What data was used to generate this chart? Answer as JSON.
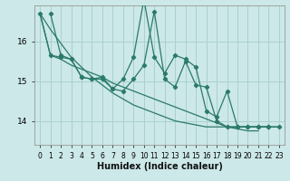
{
  "xlabel": "Humidex (Indice chaleur)",
  "bg_color": "#cce8e8",
  "grid_color": "#aad0d0",
  "line_color": "#2a7a6a",
  "xlim": [
    -0.5,
    23.5
  ],
  "ylim": [
    13.4,
    16.9
  ],
  "yticks": [
    14,
    15,
    16
  ],
  "xticks": [
    0,
    1,
    2,
    3,
    4,
    5,
    6,
    7,
    8,
    9,
    10,
    11,
    12,
    13,
    14,
    15,
    16,
    17,
    18,
    19,
    20,
    21,
    22,
    23
  ],
  "series_marked_1": [
    16.7,
    15.65,
    15.55,
    15.1,
    15.05,
    15.05,
    14.8,
    14.75,
    15.05,
    15.4,
    16.75,
    15.05,
    14.85,
    15.5,
    14.9,
    14.85,
    14.0,
    13.85,
    13.85,
    13.85,
    13.85,
    13.85
  ],
  "series_marked_2": [
    16.7,
    15.65,
    15.6,
    15.55,
    15.1,
    15.05,
    15.1,
    14.8,
    15.05,
    15.6,
    17.05,
    15.6,
    15.2,
    15.65,
    15.55,
    15.35,
    14.25,
    14.1,
    14.75,
    13.85,
    13.85,
    13.85,
    13.85,
    13.85
  ],
  "series_trend_1": [
    16.7,
    15.65,
    15.55,
    15.4,
    15.3,
    15.2,
    15.1,
    14.95,
    14.85,
    14.75,
    14.65,
    14.55,
    14.45,
    14.35,
    14.25,
    14.15,
    14.05,
    13.95,
    13.85,
    13.8,
    13.75,
    13.75
  ],
  "series_trend_2": [
    16.7,
    16.3,
    15.95,
    15.6,
    15.35,
    15.1,
    14.9,
    14.7,
    14.55,
    14.4,
    14.3,
    14.2,
    14.1,
    14.0,
    13.95,
    13.9,
    13.85,
    13.85,
    13.85,
    13.85,
    13.85,
    13.85,
    13.85,
    13.85
  ],
  "x_marked_1": [
    1,
    2,
    3,
    4,
    5,
    6,
    7,
    8,
    9,
    10,
    11,
    12,
    13,
    14,
    15,
    16,
    17,
    18,
    19,
    20,
    21,
    22
  ],
  "x_marked_2": [
    0,
    1,
    2,
    3,
    4,
    5,
    6,
    7,
    8,
    9,
    10,
    11,
    12,
    13,
    14,
    15,
    16,
    17,
    18,
    19,
    20,
    21,
    22,
    23
  ],
  "x_trend_1": [
    0,
    1,
    2,
    3,
    4,
    5,
    6,
    7,
    8,
    9,
    10,
    11,
    12,
    13,
    14,
    15,
    16,
    17,
    18,
    19,
    20,
    21
  ],
  "x_trend_2": [
    0,
    1,
    2,
    3,
    4,
    5,
    6,
    7,
    8,
    9,
    10,
    11,
    12,
    13,
    14,
    15,
    16,
    17,
    18,
    19,
    20,
    21,
    22,
    23
  ]
}
